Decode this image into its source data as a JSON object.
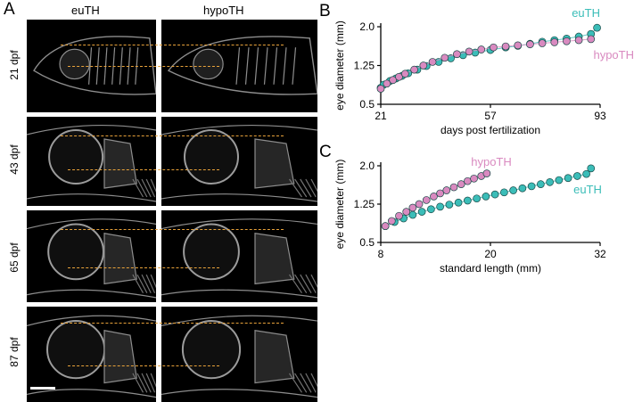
{
  "figure": {
    "panel_a_letter": "A",
    "panel_b_letter": "B",
    "panel_c_letter": "C",
    "columns": [
      "euTH",
      "hypoTH"
    ],
    "rows": [
      "21 dpf",
      "43 dpf",
      "65 dpf",
      "87 dpf"
    ]
  },
  "colors": {
    "euTH": "#3bbdb8",
    "hypoTH": "#d98ac0",
    "guide_line": "#e8a23a",
    "tile_bg": "#000000"
  },
  "chart_data": [
    {
      "type": "scatter",
      "xlabel": "days post fertilization",
      "ylabel": "eye diameter (mm)",
      "xticks": [
        "21",
        "57",
        "93"
      ],
      "yticks": [
        "0.5",
        "1.25",
        "2.0"
      ],
      "xlim": [
        21,
        93
      ],
      "ylim": [
        0.5,
        2.0
      ],
      "grid": false,
      "series": [
        {
          "name": "euTH",
          "x": [
            21,
            22,
            24,
            26,
            28,
            30,
            33,
            36,
            40,
            44,
            48,
            52,
            57,
            62,
            66,
            70,
            74,
            78,
            82,
            86,
            90,
            92
          ],
          "y": [
            0.82,
            0.88,
            0.95,
            1.0,
            1.05,
            1.1,
            1.17,
            1.24,
            1.32,
            1.39,
            1.45,
            1.5,
            1.55,
            1.6,
            1.63,
            1.67,
            1.71,
            1.74,
            1.77,
            1.81,
            1.86,
            1.98
          ]
        },
        {
          "name": "hypoTH",
          "x": [
            21,
            23,
            25,
            27,
            29,
            32,
            35,
            38,
            42,
            46,
            50,
            54,
            58,
            62,
            66,
            70,
            74,
            78,
            82,
            86,
            90
          ],
          "y": [
            0.8,
            0.9,
            0.97,
            1.03,
            1.09,
            1.17,
            1.25,
            1.32,
            1.4,
            1.47,
            1.52,
            1.56,
            1.6,
            1.62,
            1.64,
            1.66,
            1.68,
            1.7,
            1.72,
            1.74,
            1.76
          ]
        }
      ]
    },
    {
      "type": "scatter",
      "xlabel": "standard length (mm)",
      "ylabel": "eye diameter (mm)",
      "xticks": [
        "8",
        "20",
        "32"
      ],
      "yticks": [
        "0.5",
        "1.25",
        "2.0"
      ],
      "xlim": [
        8,
        32
      ],
      "ylim": [
        0.5,
        2.0
      ],
      "grid": false,
      "series": [
        {
          "name": "euTH",
          "x": [
            8.5,
            9.5,
            10.5,
            11.5,
            12.5,
            13.5,
            14.5,
            15.5,
            16.5,
            17.5,
            18.5,
            19.5,
            20.5,
            21.5,
            22.5,
            23.5,
            24.5,
            25.5,
            26.5,
            27.5,
            28.5,
            29.5,
            30.5,
            31
          ],
          "y": [
            0.82,
            0.9,
            0.97,
            1.04,
            1.1,
            1.15,
            1.2,
            1.24,
            1.28,
            1.32,
            1.36,
            1.4,
            1.44,
            1.48,
            1.52,
            1.56,
            1.6,
            1.64,
            1.68,
            1.72,
            1.76,
            1.8,
            1.84,
            1.95
          ]
        },
        {
          "name": "hypoTH",
          "x": [
            8.5,
            9.2,
            10,
            10.8,
            11.5,
            12.2,
            13,
            13.8,
            14.5,
            15.2,
            16,
            16.8,
            17.5,
            18.2,
            19,
            19.6
          ],
          "y": [
            0.82,
            0.92,
            1.02,
            1.1,
            1.18,
            1.25,
            1.33,
            1.4,
            1.46,
            1.52,
            1.58,
            1.64,
            1.7,
            1.75,
            1.8,
            1.85
          ]
        }
      ]
    }
  ]
}
